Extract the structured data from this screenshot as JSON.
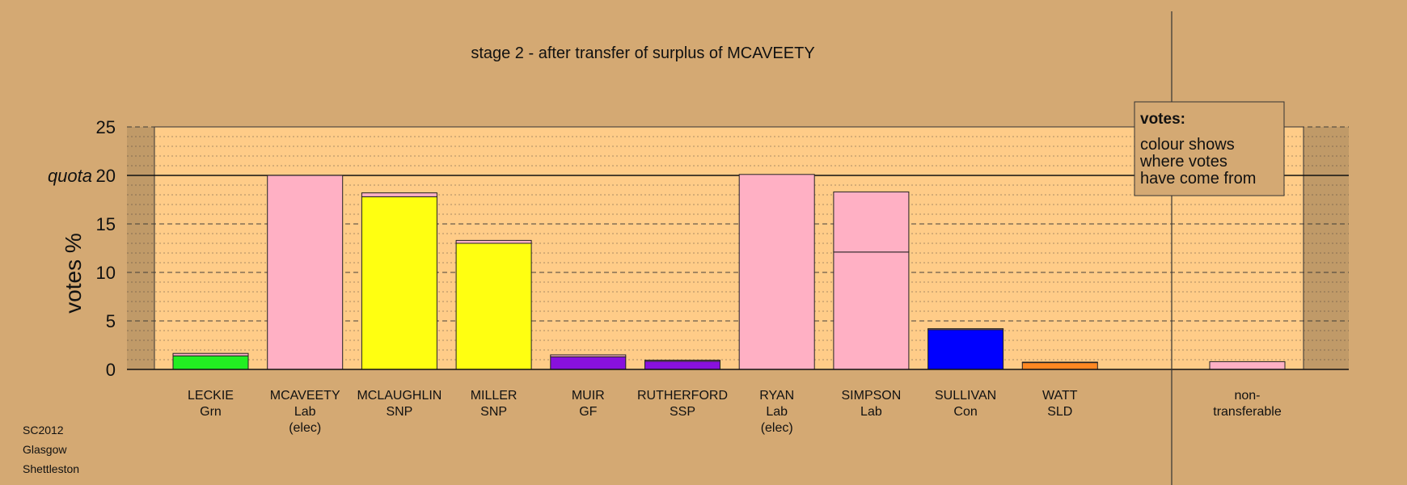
{
  "chart_data": {
    "type": "bar",
    "title": "stage 2 - after transfer of surplus of MCAVEETY",
    "ylabel": "votes %",
    "ylim": [
      0,
      25
    ],
    "yticks": [
      "0",
      "5",
      "10",
      "15",
      "20",
      "25"
    ],
    "quota": {
      "label": "quota",
      "value": 20
    },
    "grid": true,
    "legend": {
      "position": "top-right",
      "title": "votes:",
      "lines": [
        "colour shows",
        "where votes",
        "have come from"
      ]
    },
    "colors": {
      "Grn": "#22ee22",
      "Lab": "#ffb0c4",
      "SNP": "#ffff11",
      "GF": "#8811dd",
      "SSP": "#8811dd",
      "Con": "#0000ff",
      "SLD": "#ff8822",
      "plot_bg": "#ffcc88",
      "page_bg": "#d4a973"
    },
    "candidates": [
      {
        "name": "LECKIE",
        "party": "Grn",
        "note": "",
        "segments": [
          {
            "from": "Grn",
            "value": 1.4
          },
          {
            "from": "Lab",
            "value": 0.25
          }
        ]
      },
      {
        "name": "MCAVEETY",
        "party": "Lab",
        "note": "(elec)",
        "segments": [
          {
            "from": "Lab",
            "value": 20.0
          }
        ]
      },
      {
        "name": "MCLAUGHLIN",
        "party": "SNP",
        "note": "",
        "segments": [
          {
            "from": "SNP",
            "value": 17.8
          },
          {
            "from": "Lab",
            "value": 0.4
          }
        ]
      },
      {
        "name": "MILLER",
        "party": "SNP",
        "note": "",
        "segments": [
          {
            "from": "SNP",
            "value": 13.0
          },
          {
            "from": "Lab",
            "value": 0.3
          }
        ]
      },
      {
        "name": "MUIR",
        "party": "GF",
        "note": "",
        "segments": [
          {
            "from": "GF",
            "value": 1.3
          },
          {
            "from": "Lab",
            "value": 0.2
          }
        ]
      },
      {
        "name": "RUTHERFORD",
        "party": "SSP",
        "note": "",
        "segments": [
          {
            "from": "SSP",
            "value": 0.85
          },
          {
            "from": "Lab",
            "value": 0.1
          }
        ]
      },
      {
        "name": "RYAN",
        "party": "Lab",
        "note": "(elec)",
        "segments": [
          {
            "from": "Lab",
            "value": 20.1
          }
        ]
      },
      {
        "name": "SIMPSON",
        "party": "Lab",
        "note": "",
        "segments": [
          {
            "from": "Lab",
            "value": 12.1
          },
          {
            "from": "Lab",
            "value": 6.2
          }
        ]
      },
      {
        "name": "SULLIVAN",
        "party": "Con",
        "note": "",
        "segments": [
          {
            "from": "Con",
            "value": 4.1
          },
          {
            "from": "Lab",
            "value": 0.1
          }
        ]
      },
      {
        "name": "WATT",
        "party": "SLD",
        "note": "",
        "segments": [
          {
            "from": "SLD",
            "value": 0.7
          },
          {
            "from": "Lab",
            "value": 0.05
          }
        ]
      }
    ],
    "nontransferable": {
      "label_line1": "non-",
      "label_line2": "transferable",
      "segments": [
        {
          "from": "Lab",
          "value": 0.8
        }
      ]
    }
  },
  "footer": {
    "line1": "SC2012",
    "line2": "Glasgow",
    "line3": "Shettleston"
  }
}
